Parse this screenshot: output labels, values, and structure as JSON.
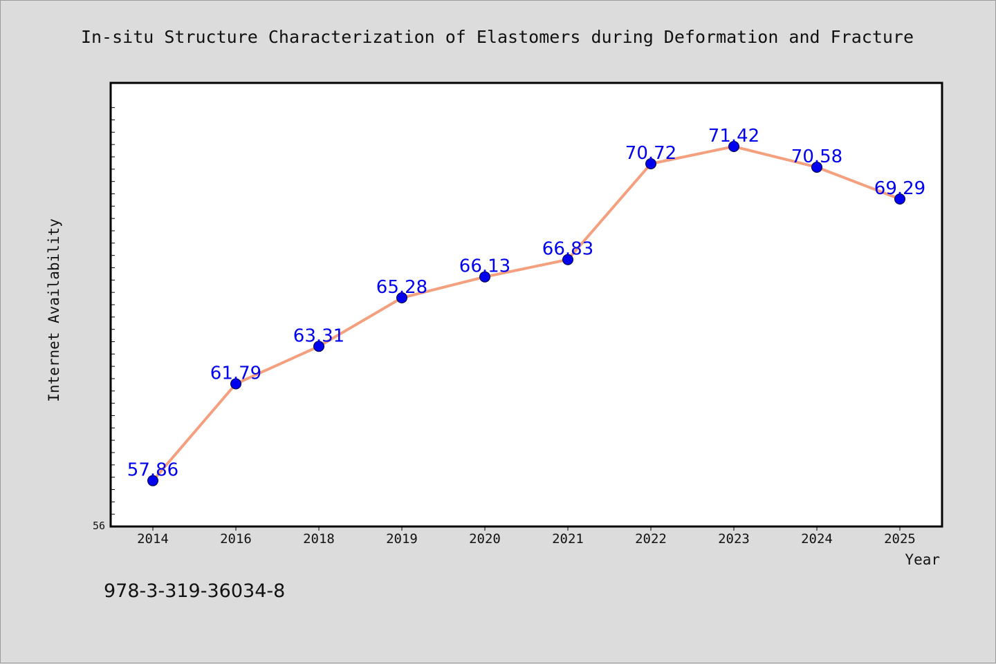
{
  "chart_data": {
    "type": "line",
    "title": "In-situ Structure Characterization of Elastomers during Deformation and Fracture",
    "xlabel": "Year",
    "ylabel": "Internet Availability",
    "categories": [
      "2014",
      "2016",
      "2018",
      "2019",
      "2020",
      "2021",
      "2022",
      "2023",
      "2024",
      "2025"
    ],
    "series": [
      {
        "values": [
          57.86,
          61.79,
          63.31,
          65.28,
          66.13,
          66.83,
          70.72,
          71.42,
          70.58,
          69.29
        ],
        "labels": [
          "57.86",
          "61.79",
          "63.31",
          "65.28",
          "66.13",
          "66.83",
          "70.72",
          "71.42",
          "70.58",
          "69.29"
        ]
      }
    ],
    "ylim": [
      56,
      74
    ],
    "ytick_labels": [
      "56"
    ],
    "grid": false,
    "legend": "none"
  },
  "annotation": "978-3-319-36034-8",
  "colors": {
    "background": "#dcdcdc",
    "plot_background": "#ffffff",
    "line": "#f4a07e",
    "marker": "#0000ee",
    "data_label": "#0000ee"
  }
}
